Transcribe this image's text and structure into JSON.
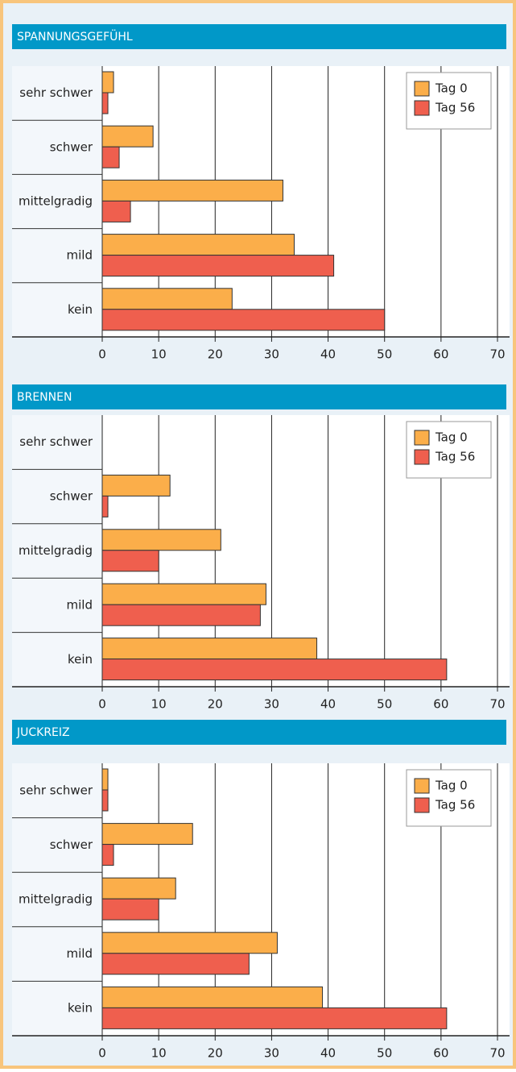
{
  "chart_data": [
    {
      "type": "bar",
      "title": "SPANNUNGSGEFÜHL",
      "orientation": "horizontal",
      "categories": [
        "sehr schwer",
        "schwer",
        "mittelgradig",
        "mild",
        "kein"
      ],
      "series": [
        {
          "name": "Tag 0",
          "color": "#fbae4a",
          "values": [
            2,
            9,
            32,
            34,
            23
          ]
        },
        {
          "name": "Tag 56",
          "color": "#ef5f4e",
          "values": [
            1,
            3,
            5,
            41,
            50
          ]
        }
      ],
      "xlim": [
        0,
        70
      ],
      "xticks": [
        0,
        10,
        20,
        30,
        40,
        50,
        60,
        70
      ],
      "grid": true,
      "legend": "upper right"
    },
    {
      "type": "bar",
      "title": "BRENNEN",
      "orientation": "horizontal",
      "categories": [
        "sehr schwer",
        "schwer",
        "mittelgradig",
        "mild",
        "kein"
      ],
      "series": [
        {
          "name": "Tag 0",
          "color": "#fbae4a",
          "values": [
            0,
            12,
            21,
            29,
            38
          ]
        },
        {
          "name": "Tag 56",
          "color": "#ef5f4e",
          "values": [
            0,
            1,
            10,
            28,
            61
          ]
        }
      ],
      "xlim": [
        0,
        70
      ],
      "xticks": [
        0,
        10,
        20,
        30,
        40,
        50,
        60,
        70
      ],
      "grid": true,
      "legend": "upper right"
    },
    {
      "type": "bar",
      "title": "JUCKREIZ",
      "orientation": "horizontal",
      "categories": [
        "sehr schwer",
        "schwer",
        "mittelgradig",
        "mild",
        "kein"
      ],
      "series": [
        {
          "name": "Tag 0",
          "color": "#fbae4a",
          "values": [
            1,
            16,
            13,
            31,
            39
          ]
        },
        {
          "name": "Tag 56",
          "color": "#ef5f4e",
          "values": [
            1,
            2,
            10,
            26,
            61
          ]
        }
      ],
      "xlim": [
        0,
        70
      ],
      "xticks": [
        0,
        10,
        20,
        30,
        40,
        50,
        60,
        70
      ],
      "grid": true,
      "legend": "upper right"
    }
  ]
}
